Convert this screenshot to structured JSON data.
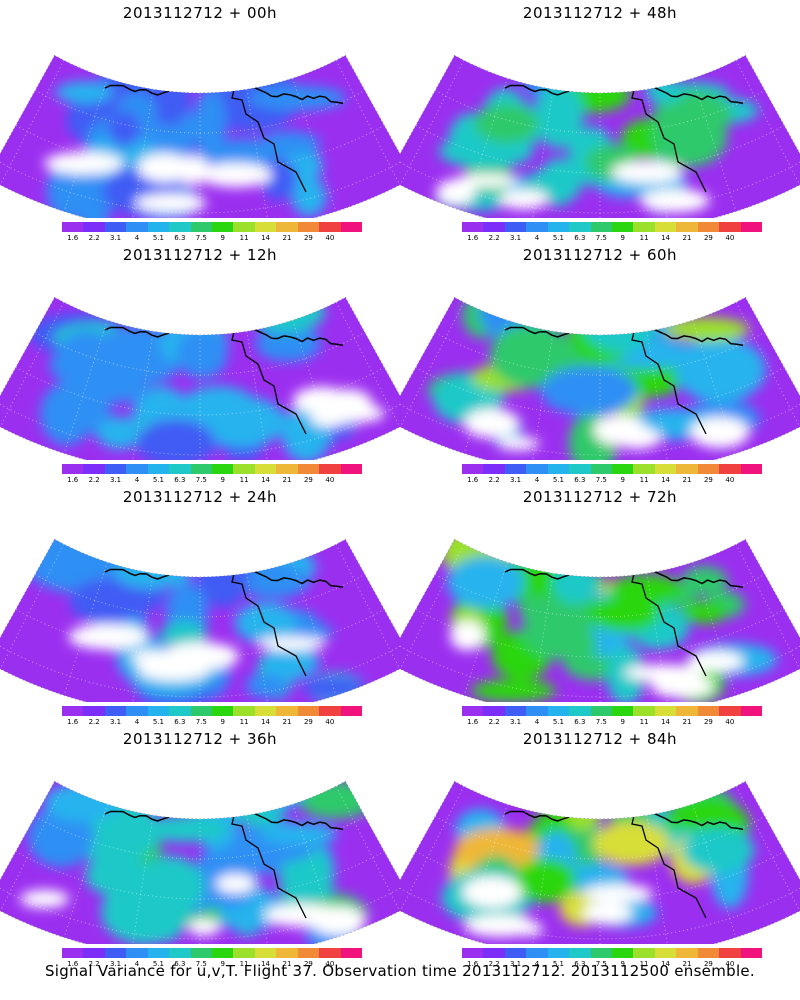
{
  "colorbar": {
    "ticks": [
      "1.6",
      "2.2",
      "3.1",
      "4",
      "5.1",
      "6.3",
      "7.5",
      "9",
      "11",
      "14",
      "21",
      "29",
      "40"
    ],
    "colors": [
      "#9b2ff0",
      "#7a2ef8",
      "#3f5cf4",
      "#2f8ff4",
      "#25b3ee",
      "#1ec9c8",
      "#2dc96b",
      "#2ad60f",
      "#9be02a",
      "#d8de38",
      "#efb738",
      "#f08a37",
      "#f0403f",
      "#f0137d"
    ]
  },
  "panels": [
    {
      "title": "2013112712 + 00h",
      "level": 0.28
    },
    {
      "title": "2013112712 + 48h",
      "level": 0.52
    },
    {
      "title": "2013112712 + 12h",
      "level": 0.35
    },
    {
      "title": "2013112712 + 60h",
      "level": 0.6
    },
    {
      "title": "2013112712 + 24h",
      "level": 0.42
    },
    {
      "title": "2013112712 + 72h",
      "level": 0.7
    },
    {
      "title": "2013112712 + 36h",
      "level": 0.45
    },
    {
      "title": "2013112712 + 84h",
      "level": 0.78
    }
  ],
  "footer": "Signal Variance for u,v,T. Flight 37. Observation time 2013112712. 2013112500 ensemble."
}
